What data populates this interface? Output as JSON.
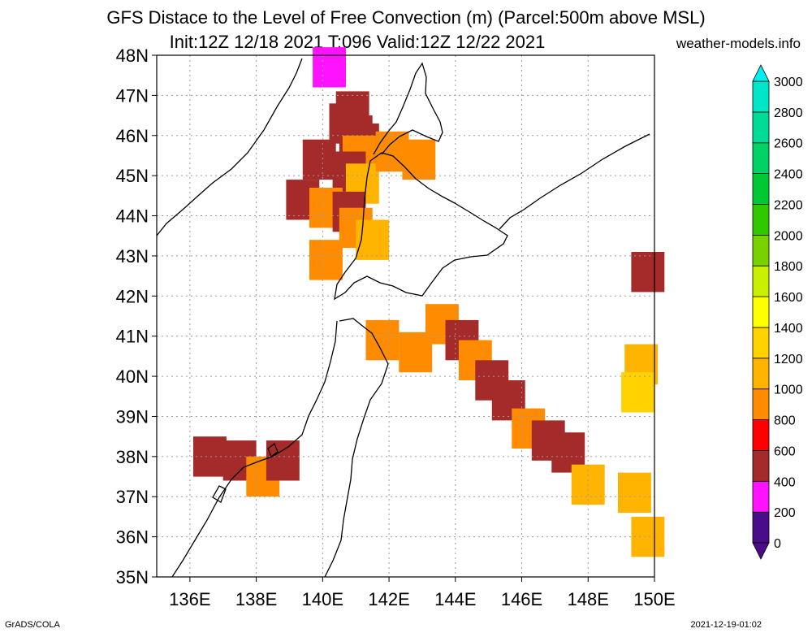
{
  "header": {
    "title_line1": "GFS Distace to the Level of Free Convection (m) (Parcel:500m above MSL)",
    "title_line2": "Init:12Z 12/18 2021 T:096 Valid:12Z 12/22 2021",
    "site": "weather-models.info"
  },
  "footer": {
    "left": "GrADS/COLA",
    "right": "2021-12-19-01:02"
  },
  "colors": {
    "coastline": "#000000",
    "grid": "#9a9a9a",
    "background": "#ffffff"
  },
  "chart_data": {
    "type": "heatmap",
    "title": "GFS Distace to the Level of Free Convection (m) (Parcel:500m above MSL)",
    "subtitle": "Init:12Z 12/18 2021 T:096 Valid:12Z 12/22 2021",
    "xlabel": "",
    "ylabel": "",
    "xlim": [
      135,
      150
    ],
    "ylim": [
      35,
      48
    ],
    "x_ticks": [
      136,
      138,
      140,
      142,
      144,
      146,
      148,
      150
    ],
    "x_tick_labels": [
      "136E",
      "138E",
      "140E",
      "142E",
      "144E",
      "146E",
      "148E",
      "150E"
    ],
    "y_ticks": [
      35,
      36,
      37,
      38,
      39,
      40,
      41,
      42,
      43,
      44,
      45,
      46,
      47,
      48
    ],
    "y_tick_labels": [
      "35N",
      "36N",
      "37N",
      "38N",
      "39N",
      "40N",
      "41N",
      "42N",
      "43N",
      "44N",
      "45N",
      "46N",
      "47N",
      "48N"
    ],
    "grid": true,
    "colorbar": {
      "position": "right",
      "levels": [
        0,
        200,
        400,
        600,
        800,
        1000,
        1200,
        1400,
        1600,
        1800,
        2000,
        2200,
        2400,
        2600,
        2800,
        3000
      ],
      "colors": [
        "#4b0c8a",
        "#ff12ff",
        "#a52a2a",
        "#ff0000",
        "#ff8c00",
        "#ffb400",
        "#ffd200",
        "#ffff00",
        "#c8f000",
        "#78d200",
        "#32c800",
        "#00c832",
        "#00d264",
        "#00dc96",
        "#00e6c8",
        "#00f0f0"
      ],
      "tick_labels": [
        "0",
        "200",
        "400",
        "600",
        "800",
        "1000",
        "1200",
        "1400",
        "1600",
        "1800",
        "2000",
        "2200",
        "2400",
        "2600",
        "2800",
        "3000"
      ]
    },
    "cells": [
      {
        "lon": 140.2,
        "lat": 47.7,
        "value": 300
      },
      {
        "lon": 140.9,
        "lat": 46.6,
        "value": 500
      },
      {
        "lon": 140.7,
        "lat": 46.3,
        "value": 500
      },
      {
        "lon": 141.0,
        "lat": 46.0,
        "value": 500
      },
      {
        "lon": 141.2,
        "lat": 45.8,
        "value": 500
      },
      {
        "lon": 141.1,
        "lat": 45.5,
        "value": 900
      },
      {
        "lon": 140.8,
        "lat": 45.1,
        "value": 500
      },
      {
        "lon": 141.2,
        "lat": 44.8,
        "value": 1000
      },
      {
        "lon": 139.9,
        "lat": 45.4,
        "value": 400
      },
      {
        "lon": 142.1,
        "lat": 45.6,
        "value": 900
      },
      {
        "lon": 142.9,
        "lat": 45.4,
        "value": 900
      },
      {
        "lon": 139.4,
        "lat": 44.4,
        "value": 400
      },
      {
        "lon": 140.1,
        "lat": 44.2,
        "value": 900
      },
      {
        "lon": 140.8,
        "lat": 44.1,
        "value": 500
      },
      {
        "lon": 141.0,
        "lat": 43.7,
        "value": 900
      },
      {
        "lon": 141.5,
        "lat": 43.4,
        "value": 1000
      },
      {
        "lon": 140.1,
        "lat": 42.9,
        "value": 900
      },
      {
        "lon": 143.6,
        "lat": 41.3,
        "value": 900
      },
      {
        "lon": 144.2,
        "lat": 40.9,
        "value": 500
      },
      {
        "lon": 144.6,
        "lat": 40.4,
        "value": 900
      },
      {
        "lon": 145.1,
        "lat": 39.9,
        "value": 500
      },
      {
        "lon": 145.6,
        "lat": 39.4,
        "value": 500
      },
      {
        "lon": 146.2,
        "lat": 38.7,
        "value": 900
      },
      {
        "lon": 146.8,
        "lat": 38.4,
        "value": 500
      },
      {
        "lon": 147.4,
        "lat": 38.1,
        "value": 500
      },
      {
        "lon": 148.0,
        "lat": 37.3,
        "value": 1000
      },
      {
        "lon": 149.4,
        "lat": 37.1,
        "value": 1000
      },
      {
        "lon": 149.8,
        "lat": 36.0,
        "value": 1000
      },
      {
        "lon": 149.8,
        "lat": 42.6,
        "value": 500
      },
      {
        "lon": 149.6,
        "lat": 40.3,
        "value": 1000
      },
      {
        "lon": 149.5,
        "lat": 39.6,
        "value": 1200
      },
      {
        "lon": 136.6,
        "lat": 38.0,
        "value": 500
      },
      {
        "lon": 137.5,
        "lat": 37.9,
        "value": 500
      },
      {
        "lon": 138.2,
        "lat": 37.5,
        "value": 900
      },
      {
        "lon": 138.8,
        "lat": 37.9,
        "value": 500
      },
      {
        "lon": 141.8,
        "lat": 40.9,
        "value": 900
      },
      {
        "lon": 142.8,
        "lat": 40.6,
        "value": 900
      }
    ]
  }
}
